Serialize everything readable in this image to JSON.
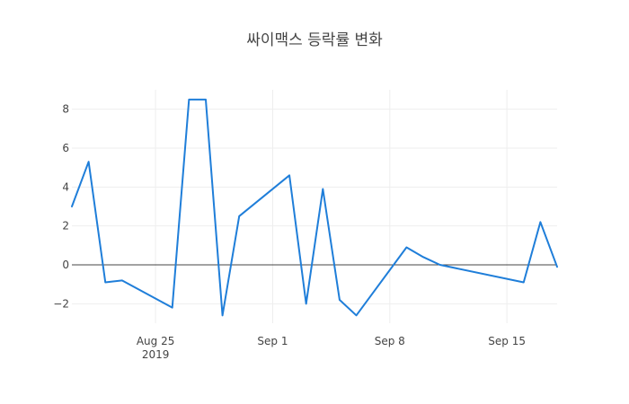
{
  "chart_data": {
    "type": "line",
    "title": "싸이맥스 등락률 변화",
    "xlabel": "",
    "ylabel": "",
    "x_dates": [
      "2019-08-20",
      "2019-08-21",
      "2019-08-22",
      "2019-08-23",
      "2019-08-26",
      "2019-08-27",
      "2019-08-28",
      "2019-08-29",
      "2019-08-30",
      "2019-09-02",
      "2019-09-03",
      "2019-09-04",
      "2019-09-05",
      "2019-09-06",
      "2019-09-09",
      "2019-09-10",
      "2019-09-11",
      "2019-09-16",
      "2019-09-17",
      "2019-09-18"
    ],
    "series": [
      {
        "values": [
          3.0,
          5.3,
          -0.9,
          -0.8,
          -2.2,
          8.5,
          8.5,
          -2.6,
          2.5,
          4.6,
          -2.0,
          3.9,
          -1.8,
          -2.6,
          0.9,
          0.4,
          0.0,
          -0.9,
          2.2,
          -0.1
        ]
      }
    ],
    "xlim": [
      "2019-08-20",
      "2019-09-18"
    ],
    "ylim": [
      -3.0,
      9.0
    ],
    "x_ticks": [
      {
        "date": "2019-08-25",
        "label": "Aug 25",
        "sublabel": "2019"
      },
      {
        "date": "2019-09-01",
        "label": "Sep 1",
        "sublabel": ""
      },
      {
        "date": "2019-09-08",
        "label": "Sep 8",
        "sublabel": ""
      },
      {
        "date": "2019-09-15",
        "label": "Sep 15",
        "sublabel": ""
      }
    ],
    "y_ticks": [
      {
        "value": -2,
        "label": "−2"
      },
      {
        "value": 0,
        "label": "0"
      },
      {
        "value": 2,
        "label": "2"
      },
      {
        "value": 4,
        "label": "4"
      },
      {
        "value": 6,
        "label": "6"
      },
      {
        "value": 8,
        "label": "8"
      }
    ],
    "grid": true,
    "zero_line": true,
    "colors": {
      "line": "#1f7ed9",
      "grid": "#eeeeee",
      "zero_line": "#444444",
      "text": "#444444"
    }
  }
}
